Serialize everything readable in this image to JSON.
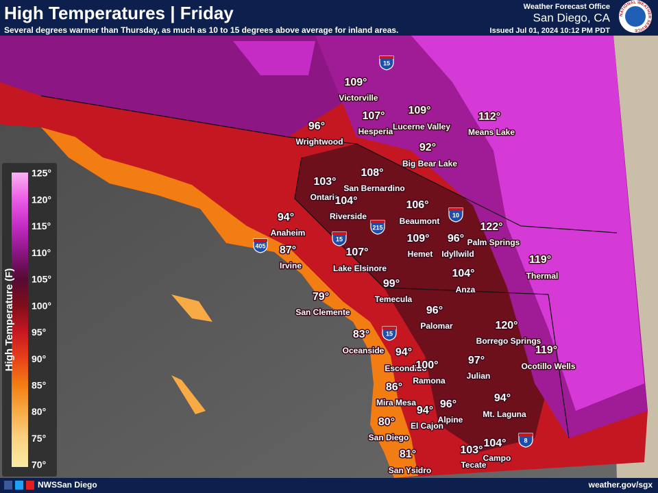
{
  "header": {
    "title": "High Temperatures | Friday",
    "subtitle": "Several degrees warmer than Thursday, as much as 10 to 15 degrees above average for inland areas.",
    "office": "Weather Forecast Office",
    "location": "San Diego, CA",
    "issued": "Issued Jul 01, 2024 10:12 PM PDT",
    "logo_text": "NATIONAL WEATHER SERVICE"
  },
  "legend": {
    "title": "High Temperature (F)",
    "labels": [
      "125°",
      "120°",
      "115°",
      "110°",
      "105°",
      "100°",
      "95°",
      "90°",
      "85°",
      "80°",
      "75°",
      "70°"
    ]
  },
  "cities": [
    {
      "temp": "109°",
      "name": "Victorville"
    },
    {
      "temp": "107°",
      "name": "Hesperia"
    },
    {
      "temp": "109°",
      "name": "Lucerne Valley"
    },
    {
      "temp": "112°",
      "name": "Means Lake"
    },
    {
      "temp": "96°",
      "name": "Wrightwood"
    },
    {
      "temp": "92°",
      "name": "Big Bear Lake"
    },
    {
      "temp": "108°",
      "name": "San Bernardino"
    },
    {
      "temp": "103°",
      "name": "Ontario"
    },
    {
      "temp": "104°",
      "name": "Riverside"
    },
    {
      "temp": "106°",
      "name": "Beaumont"
    },
    {
      "temp": "122°",
      "name": "Palm Springs"
    },
    {
      "temp": "94°",
      "name": "Anaheim"
    },
    {
      "temp": "109°",
      "name": "Hemet"
    },
    {
      "temp": "96°",
      "name": "Idyllwild"
    },
    {
      "temp": "87°",
      "name": "Irvine"
    },
    {
      "temp": "107°",
      "name": "Lake Elsinore"
    },
    {
      "temp": "119°",
      "name": "Thermal"
    },
    {
      "temp": "104°",
      "name": "Anza"
    },
    {
      "temp": "99°",
      "name": "Temecula"
    },
    {
      "temp": "79°",
      "name": "San Clemente"
    },
    {
      "temp": "96°",
      "name": "Palomar"
    },
    {
      "temp": "120°",
      "name": "Borrego Springs"
    },
    {
      "temp": "83°",
      "name": "Oceanside"
    },
    {
      "temp": "119°",
      "name": "Ocotillo Wells"
    },
    {
      "temp": "94°",
      "name": "Escondido"
    },
    {
      "temp": "100°",
      "name": "Ramona"
    },
    {
      "temp": "97°",
      "name": "Julian"
    },
    {
      "temp": "86°",
      "name": "Mira Mesa"
    },
    {
      "temp": "96°",
      "name": "Alpine"
    },
    {
      "temp": "94°",
      "name": "El Cajon"
    },
    {
      "temp": "94°",
      "name": "Mt. Laguna"
    },
    {
      "temp": "80°",
      "name": "San Diego"
    },
    {
      "temp": "104°",
      "name": "Campo"
    },
    {
      "temp": "103°",
      "name": "Tecate"
    },
    {
      "temp": "81°",
      "name": "San Ysidro"
    }
  ],
  "highways": [
    "15",
    "10",
    "215",
    "15",
    "405",
    "15",
    "8"
  ],
  "footer": {
    "social": "NWSSan Diego",
    "website": "weather.gov/sgx"
  }
}
